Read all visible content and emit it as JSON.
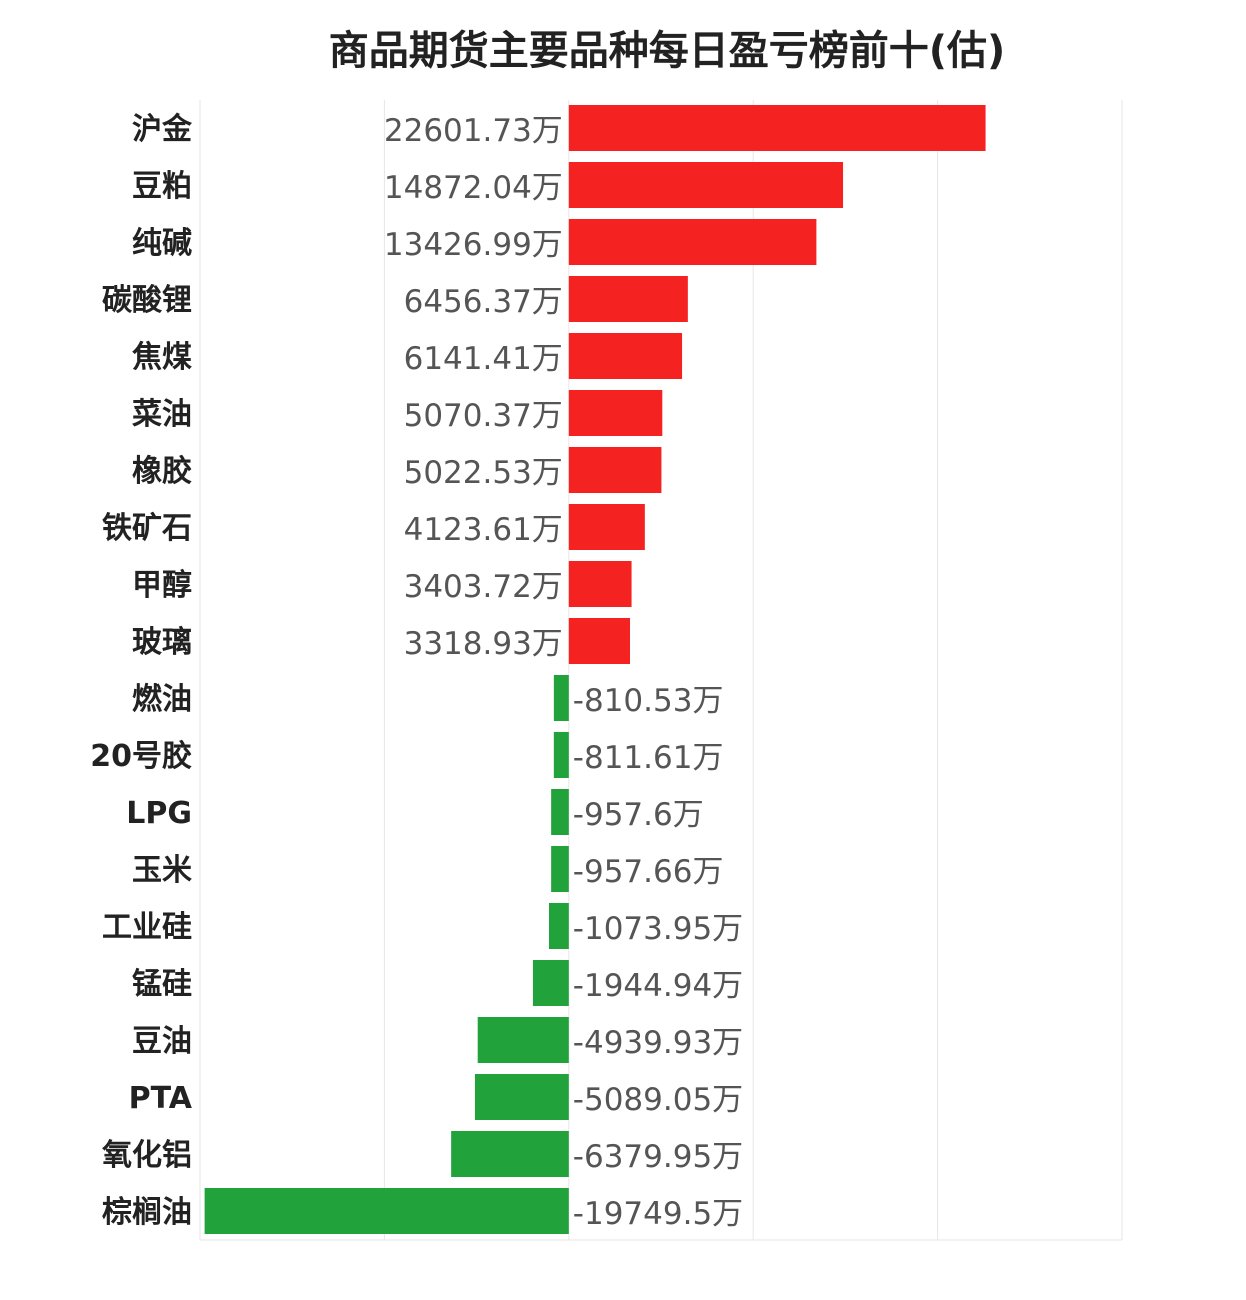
{
  "chart_data": {
    "type": "bar",
    "orientation": "horizontal",
    "title": "商品期货主要品种每日盈亏榜前十(估)",
    "unit_suffix": "万",
    "categories": [
      "沪金",
      "豆粕",
      "纯碱",
      "碳酸锂",
      "焦煤",
      "菜油",
      "橡胶",
      "铁矿石",
      "甲醇",
      "玻璃",
      "燃油",
      "20号胶",
      "LPG",
      "玉米",
      "工业硅",
      "锰硅",
      "豆油",
      "PTA",
      "氧化铝",
      "棕榈油"
    ],
    "value_labels": [
      "22601.73",
      "14872.04",
      "13426.99",
      "6456.37",
      "6141.41",
      "5070.37",
      "5022.53",
      "4123.61",
      "3403.72",
      "3318.93",
      "-810.53",
      "-811.61",
      "-957.6",
      "-957.66",
      "-1073.95",
      "-1944.94",
      "-4939.93",
      "-5089.05",
      "-6379.95",
      "-19749.5"
    ],
    "values": [
      22601.73,
      14872.04,
      13426.99,
      6456.37,
      6141.41,
      5070.37,
      5022.53,
      4123.61,
      3403.72,
      3318.93,
      -810.53,
      -811.61,
      -957.6,
      -957.66,
      -1073.95,
      -1944.94,
      -4939.93,
      -5089.05,
      -6379.95,
      -19749.5
    ],
    "xlim": [
      -20000,
      30000
    ],
    "grid": true,
    "colors": {
      "positive": "#f52222",
      "negative": "#21a23b",
      "grid": "#e6e6e6"
    }
  }
}
